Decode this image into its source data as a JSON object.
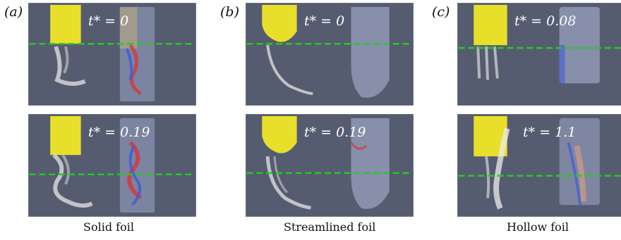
{
  "panels": [
    {
      "label": "(a)",
      "caption": "Solid foil",
      "snapshots": [
        {
          "time": "t* = 0"
        },
        {
          "time": "t* = 0.19"
        }
      ]
    },
    {
      "label": "(b)",
      "caption": "Streamlined foil",
      "snapshots": [
        {
          "time": "t* = 0"
        },
        {
          "time": "t* = 0.19"
        }
      ]
    },
    {
      "label": "(c)",
      "caption": "Hollow foil",
      "snapshots": [
        {
          "time": "t* = 0.08"
        },
        {
          "time": "t* = 1.1"
        }
      ]
    }
  ],
  "colors": {
    "background": "#565c70",
    "foil": "#e8df2a",
    "waterline": "#22cc22",
    "vortex_red": "#d23a3a",
    "vortex_blue": "#3d5bd9"
  }
}
